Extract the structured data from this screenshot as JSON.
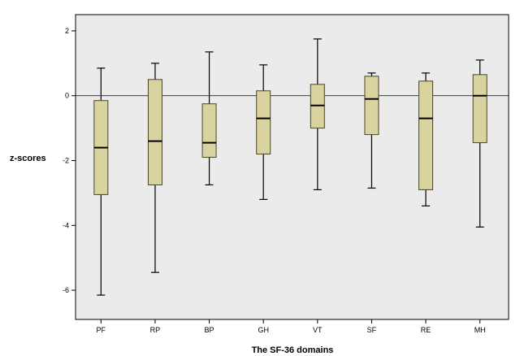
{
  "chart_data": {
    "type": "boxplot",
    "title": "",
    "xlabel": "The SF-36 domains",
    "ylabel": "z-scores",
    "ylim": [
      -6.9,
      2.5
    ],
    "yticks": [
      2,
      0,
      -2,
      -4,
      -6
    ],
    "reference_line": 0,
    "grid": false,
    "colors": {
      "box_fill": "#d9d39f",
      "box_stroke": "#4a4528",
      "plot_bg": "#ebebeb"
    },
    "categories": [
      "PF",
      "RP",
      "BP",
      "GH",
      "VT",
      "SF",
      "RE",
      "MH"
    ],
    "boxes": [
      {
        "category": "PF",
        "min": -6.15,
        "q1": -3.05,
        "median": -1.6,
        "q3": -0.15,
        "max": 0.85
      },
      {
        "category": "RP",
        "min": -5.45,
        "q1": -2.75,
        "median": -1.4,
        "q3": 0.5,
        "max": 1.0
      },
      {
        "category": "BP",
        "min": -2.75,
        "q1": -1.9,
        "median": -1.45,
        "q3": -0.25,
        "max": 1.35
      },
      {
        "category": "GH",
        "min": -3.2,
        "q1": -1.8,
        "median": -0.7,
        "q3": 0.15,
        "max": 0.95
      },
      {
        "category": "VT",
        "min": -2.9,
        "q1": -1.0,
        "median": -0.3,
        "q3": 0.35,
        "max": 1.75
      },
      {
        "category": "SF",
        "min": -2.85,
        "q1": -1.2,
        "median": -0.1,
        "q3": 0.6,
        "max": 0.7
      },
      {
        "category": "RE",
        "min": -3.4,
        "q1": -2.9,
        "median": -0.7,
        "q3": 0.45,
        "max": 0.7
      },
      {
        "category": "MH",
        "min": -4.05,
        "q1": -1.45,
        "median": 0.0,
        "q3": 0.65,
        "max": 1.1
      }
    ]
  }
}
